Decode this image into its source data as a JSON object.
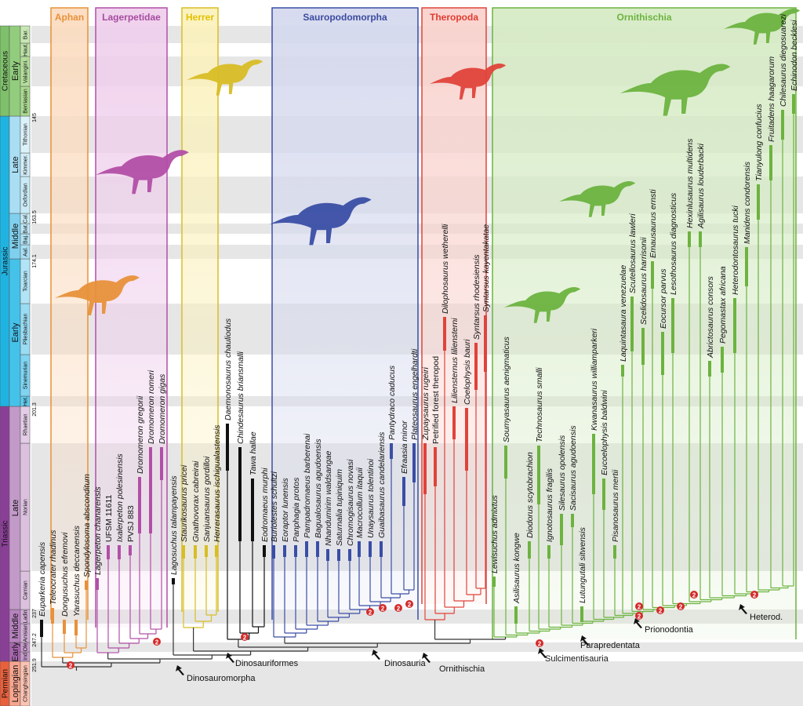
{
  "timescale": {
    "periods": [
      {
        "name": "Permian",
        "color": "#e8603c"
      },
      {
        "name": "Triassic",
        "color": "#8a3f97"
      },
      {
        "name": "Jurassic",
        "color": "#1fb3e1"
      },
      {
        "name": "Cretaceous",
        "color": "#7fc06b"
      }
    ],
    "epochs": [
      {
        "name": "Lopingian",
        "color": "#f7a58f"
      },
      {
        "name": "Early",
        "color": "#a866af"
      },
      {
        "name": "Middle",
        "color": "#b782bf"
      },
      {
        "name": "Late",
        "color": "#c29ac8"
      },
      {
        "name": "Early",
        "color": "#45c2ea"
      },
      {
        "name": "Middle",
        "color": "#7fd0ee"
      },
      {
        "name": "Late",
        "color": "#a9def3"
      },
      {
        "name": "Early",
        "color": "#92cd7d"
      }
    ],
    "stages": [
      {
        "name": "Changhsingian",
        "color": "#fbc3b3"
      },
      {
        "name": "Ind",
        "color": "#c89ccd"
      },
      {
        "name": "Ole",
        "color": "#c89ccd"
      },
      {
        "name": "Anisian",
        "color": "#d2afd6"
      },
      {
        "name": "Ladin",
        "color": "#d2afd6"
      },
      {
        "name": "Carnian",
        "color": "#dcc1df"
      },
      {
        "name": "Norian",
        "color": "#dcc1df"
      },
      {
        "name": "Rhaetian",
        "color": "#e3cde6"
      },
      {
        "name": "Het.",
        "color": "#5fcbee"
      },
      {
        "name": "Sinemurian",
        "color": "#7fd4f1"
      },
      {
        "name": "Pliesbachian",
        "color": "#9adcf3"
      },
      {
        "name": "Toarcian",
        "color": "#b1e4f6"
      },
      {
        "name": "Aal.",
        "color": "#a9dff4"
      },
      {
        "name": "Baj.",
        "color": "#b4e3f5"
      },
      {
        "name": "Bat.",
        "color": "#bfe7f6"
      },
      {
        "name": "Cal.",
        "color": "#c9ebf7"
      },
      {
        "name": "Oxfordian",
        "color": "#c9ebf7"
      },
      {
        "name": "Kimmer.",
        "color": "#d3eff9"
      },
      {
        "name": "Tithonian",
        "color": "#dcf2fa"
      },
      {
        "name": "Berriasian",
        "color": "#a9d98f"
      },
      {
        "name": "Valangini.",
        "color": "#b3dd9b"
      },
      {
        "name": "Haut.",
        "color": "#bde1a6"
      },
      {
        "name": "Bar.",
        "color": "#c7e6b2"
      }
    ],
    "ages": [
      "251.9",
      "247.2",
      "237",
      "201.3",
      "174.1",
      "163.5",
      "145"
    ]
  },
  "clades": [
    {
      "name": "Aphan",
      "color": "#e8913a",
      "fill": "#fbdcc0",
      "title_color": "#e8913a"
    },
    {
      "name": "Lagerpetidae",
      "color": "#b24fa7",
      "fill": "#efcfec",
      "title_color": "#a64ca0"
    },
    {
      "name": "Herrer",
      "color": "#d8bd25",
      "fill": "#fbf1bd",
      "title_color": "#e2c000"
    },
    {
      "name": "Sauropodomorpha",
      "color": "#3a4ea5",
      "fill": "#d5d9ee",
      "title_color": "#3b4ba0"
    },
    {
      "name": "Theropoda",
      "color": "#e0433a",
      "fill": "#f9d2cd",
      "title_color": "#e03c31"
    },
    {
      "name": "Ornithischia",
      "color": "#6cb33f",
      "fill": "#d6ebc5",
      "title_color": "#6cb33f"
    }
  ],
  "outgroup_color": "#111111",
  "taxa": {
    "outgroup": [
      "Euparkeria capensis"
    ],
    "aphan": [
      "Teleocrater rhadinus",
      "Dongusuchus efremovi",
      "Yarasuchus deccanensis",
      "Spondylosoma absconditum"
    ],
    "lagerpetidae": [
      "Lagerpeton chanarensis",
      "UFSM 11611",
      "Ixalerpeton polesinensis",
      "PVSJ 883",
      "Dromomeron gregorii",
      "Dromomeron romeri",
      "Dromomeron gigas"
    ],
    "lagosuchus": [
      "Lagosuchus talampayensis"
    ],
    "herrer": [
      "Staurikosaurus pricei",
      "Gnathovorax cabreirai",
      "Sanjuansaurus gordilloi",
      "Herrerasaurus ischigualastensis"
    ],
    "basal_saurischia": [
      "Daemonosaurus chauliodus",
      "Chindesaurus briansmalli",
      "Tawa hallae",
      "Eodromaeus murphi"
    ],
    "sauropodomorpha": [
      "Buriolestes schultzi",
      "Eoraptor lunensis",
      "Panphagia protos",
      "Pampadromaeus barberenai",
      "Bagualosaurus agudoensis",
      "Nhandumirim waldsangae",
      "Saturnalia tupiniquim",
      "Chromogisaurus novasi",
      "Macrocollum itaquii",
      "Unaysaurus tolentinoi",
      "Guaibasaurus candelariensis",
      "Pantydraco caducus",
      "Efraasia minor",
      "Plateosaurus engelhardti"
    ],
    "theropoda": [
      "Zupaysaurus rugeiri",
      "Petrified forest theropod",
      "Dilophosaurus wetherelli",
      "Liliensternus liliensterni",
      "Coelophysis bauri",
      "Syntarsus rhodesiensis",
      "Syntarsus kayentakatae"
    ],
    "ornithischia": [
      "Lewisuchus admixtus",
      "Soumyasaurus aenigmaticus",
      "Asilisaurus kongwe",
      "Diodorus scytobrachion",
      "Technosaurus smalli",
      "Ignotosaurus fragilis",
      "Silesaurus opolensis",
      "Sacisaurus agudoensis",
      "Lutungutali sitwensis",
      "Kwanasaurus williamparkeri",
      "Eucoelophysis baldwini",
      "Pisanosaurus mertii",
      "Laquintasaura venezuelae",
      "Scutellosaurus lawleri",
      "Scelidosaurus harrisonii",
      "Emausaurus ernsti",
      "Eocursor parvus",
      "Lesothosaurus diagnosticus",
      "Hexinlusaurus multidens",
      "Agilisaurus louderbacki",
      "Abrictosaurus consors",
      "Pegomastax africana",
      "Heterodontosaurus tucki",
      "Manidens condorensis",
      "Tianyulong confucius",
      "Fruitadens haagarorum",
      "Chilesaurus diegosuarezi",
      "Echinodon becklesi"
    ]
  },
  "node_labels": [
    "Dinosauromorpha",
    "Dinosauriformes",
    "Dinosauria",
    "Ornithischia",
    "Sulcimentisauria",
    "Parapredentata",
    "Prionodontia",
    "Heterod."
  ],
  "node_marker": "2",
  "marker_color": "#d42a2a"
}
